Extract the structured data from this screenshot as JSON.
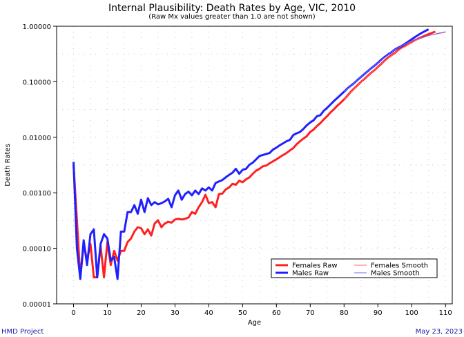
{
  "chart_data": {
    "type": "line",
    "title": "Internal Plausibility: Death Rates by Age, VIC, 2010",
    "subtitle": "(Raw Mx values greater than 1.0 are not shown)",
    "xlabel": "Age",
    "ylabel": "Death Rates",
    "xlim": [
      -5,
      112
    ],
    "ylim": [
      1e-05,
      1.0
    ],
    "y_scale": "log",
    "x_ticks": [
      0,
      10,
      20,
      30,
      40,
      50,
      60,
      70,
      80,
      90,
      100,
      110
    ],
    "y_ticks": [
      {
        "value": 1e-05,
        "label": "0.00001"
      },
      {
        "value": 0.0001,
        "label": "0.00010"
      },
      {
        "value": 0.001,
        "label": "0.00100"
      },
      {
        "value": 0.01,
        "label": "0.01000"
      },
      {
        "value": 0.1,
        "label": "0.10000"
      },
      {
        "value": 1.0,
        "label": "1.00000"
      }
    ],
    "grid": true,
    "legend_position": "bottom-right",
    "series": [
      {
        "name": "Females Raw",
        "color": "#ff2020",
        "style": "thick",
        "x": [
          0,
          1,
          2,
          3,
          4,
          5,
          6,
          7,
          8,
          9,
          10,
          11,
          12,
          13,
          14,
          15,
          16,
          17,
          18,
          19,
          20,
          21,
          22,
          23,
          24,
          25,
          26,
          27,
          28,
          29,
          30,
          31,
          32,
          33,
          34,
          35,
          36,
          37,
          38,
          39,
          40,
          41,
          42,
          43,
          44,
          45,
          46,
          47,
          48,
          49,
          50,
          51,
          52,
          53,
          54,
          55,
          56,
          57,
          58,
          59,
          60,
          61,
          62,
          63,
          64,
          65,
          66,
          67,
          68,
          69,
          70,
          71,
          72,
          73,
          74,
          75,
          76,
          77,
          78,
          79,
          80,
          81,
          82,
          83,
          84,
          85,
          86,
          87,
          88,
          89,
          90,
          91,
          92,
          93,
          94,
          95,
          96,
          97,
          98,
          99,
          100,
          101,
          102,
          103,
          104,
          105,
          106,
          107
        ],
        "y": [
          0.0032,
          0.00032,
          3e-05,
          0.00012,
          6e-05,
          0.00012,
          3e-05,
          3e-05,
          0.00011,
          3e-05,
          0.00013,
          5e-05,
          9e-05,
          6e-05,
          9e-05,
          9e-05,
          0.00013,
          0.00015,
          0.0002,
          0.00024,
          0.00023,
          0.00018,
          0.00022,
          0.00017,
          0.00028,
          0.00032,
          0.00024,
          0.00028,
          0.0003,
          0.00029,
          0.00033,
          0.00034,
          0.00033,
          0.00034,
          0.00036,
          0.00045,
          0.00042,
          0.00055,
          0.00068,
          0.00092,
          0.00065,
          0.00068,
          0.00055,
          0.00095,
          0.00097,
          0.00115,
          0.00125,
          0.00145,
          0.0014,
          0.00165,
          0.00155,
          0.00175,
          0.0019,
          0.0022,
          0.0025,
          0.0027,
          0.003,
          0.0031,
          0.0034,
          0.0037,
          0.004,
          0.0044,
          0.0048,
          0.0052,
          0.0058,
          0.0064,
          0.0075,
          0.0085,
          0.0095,
          0.0105,
          0.0125,
          0.0138,
          0.016,
          0.018,
          0.021,
          0.024,
          0.028,
          0.032,
          0.037,
          0.042,
          0.048,
          0.056,
          0.066,
          0.076,
          0.087,
          0.1,
          0.112,
          0.128,
          0.145,
          0.162,
          0.185,
          0.21,
          0.24,
          0.27,
          0.3,
          0.33,
          0.37,
          0.41,
          0.44,
          0.48,
          0.52,
          0.56,
          0.6,
          0.64,
          0.68,
          0.72,
          0.76,
          0.8
        ]
      },
      {
        "name": "Males Raw",
        "color": "#2020ff",
        "style": "thick",
        "x": [
          0,
          1,
          2,
          3,
          4,
          5,
          6,
          7,
          8,
          9,
          10,
          11,
          12,
          13,
          14,
          15,
          16,
          17,
          18,
          19,
          20,
          21,
          22,
          23,
          24,
          25,
          26,
          27,
          28,
          29,
          30,
          31,
          32,
          33,
          34,
          35,
          36,
          37,
          38,
          39,
          40,
          41,
          42,
          43,
          44,
          45,
          46,
          47,
          48,
          49,
          50,
          51,
          52,
          53,
          54,
          55,
          56,
          57,
          58,
          59,
          60,
          61,
          62,
          63,
          64,
          65,
          66,
          67,
          68,
          69,
          70,
          71,
          72,
          73,
          74,
          75,
          76,
          77,
          78,
          79,
          80,
          81,
          82,
          83,
          84,
          85,
          86,
          87,
          88,
          89,
          90,
          91,
          92,
          93,
          94,
          95,
          96,
          97,
          98,
          99,
          100,
          101,
          102,
          103,
          104,
          105
        ],
        "y": [
          0.0036,
          0.0001,
          2.8e-05,
          0.00014,
          5e-05,
          0.00018,
          0.00022,
          3e-05,
          0.00012,
          0.00018,
          0.00015,
          6e-05,
          7e-05,
          2.8e-05,
          0.0002,
          0.0002,
          0.00045,
          0.00045,
          0.0006,
          0.00042,
          0.00075,
          0.00045,
          0.0008,
          0.0006,
          0.00068,
          0.00062,
          0.00065,
          0.0007,
          0.00078,
          0.00055,
          0.0009,
          0.0011,
          0.00075,
          0.00095,
          0.00105,
          0.0009,
          0.0011,
          0.00095,
          0.0012,
          0.0011,
          0.00125,
          0.0011,
          0.0015,
          0.0016,
          0.0017,
          0.0019,
          0.0021,
          0.0023,
          0.0027,
          0.0022,
          0.0026,
          0.0027,
          0.0032,
          0.0035,
          0.004,
          0.0046,
          0.0048,
          0.005,
          0.0052,
          0.006,
          0.0065,
          0.0072,
          0.0078,
          0.0085,
          0.009,
          0.011,
          0.0118,
          0.0125,
          0.0142,
          0.0165,
          0.0185,
          0.0202,
          0.024,
          0.025,
          0.03,
          0.034,
          0.039,
          0.045,
          0.051,
          0.058,
          0.066,
          0.076,
          0.085,
          0.095,
          0.108,
          0.122,
          0.138,
          0.155,
          0.175,
          0.195,
          0.22,
          0.25,
          0.28,
          0.31,
          0.34,
          0.38,
          0.41,
          0.44,
          0.48,
          0.53,
          0.58,
          0.64,
          0.7,
          0.76,
          0.82,
          0.88
        ]
      },
      {
        "name": "Females Smooth",
        "color": "#ff6a6a",
        "style": "thin",
        "x": [
          80,
          85,
          90,
          95,
          100,
          105,
          110
        ],
        "y": [
          0.048,
          0.1,
          0.185,
          0.33,
          0.52,
          0.68,
          0.78
        ]
      },
      {
        "name": "Males Smooth",
        "color": "#6a6aff",
        "style": "thin",
        "x": [
          80,
          85,
          90,
          95,
          100,
          105,
          110
        ],
        "y": [
          0.066,
          0.122,
          0.22,
          0.38,
          0.55,
          0.68,
          0.8
        ]
      }
    ]
  },
  "footer": {
    "left": "HMD Project",
    "right": "May 23, 2023"
  }
}
